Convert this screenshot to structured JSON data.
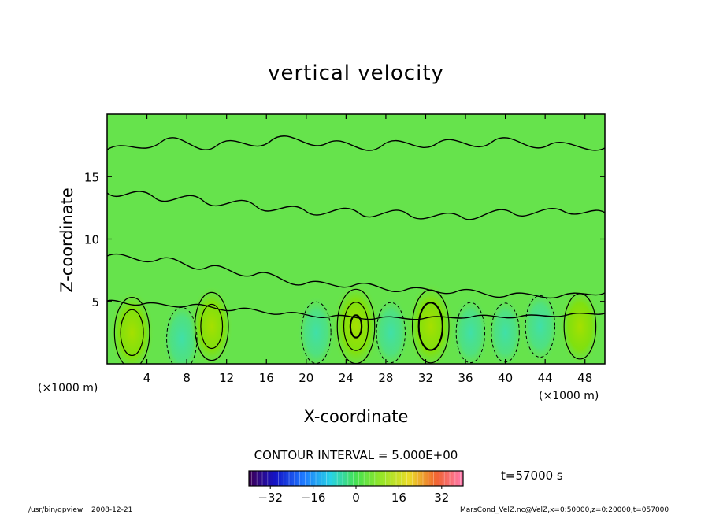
{
  "chart_data": {
    "type": "heatmap",
    "title": "vertical velocity",
    "xlabel": "X-coordinate",
    "ylabel": "Z-coordinate",
    "xunit_left": "(×1000 m)",
    "xunit_right": "(×1000 m)",
    "xlim": [
      0,
      50
    ],
    "ylim": [
      0,
      20
    ],
    "xticks": [
      4,
      8,
      12,
      16,
      20,
      24,
      28,
      32,
      36,
      40,
      44,
      48
    ],
    "yticks": [
      5,
      10,
      15
    ],
    "contour_interval_text": "CONTOUR INTERVAL = 5.000E+00",
    "time_label": "t=57000 s",
    "colorbar": {
      "min": -40,
      "max": 40,
      "ticks": [
        -32,
        -16,
        0,
        16,
        32
      ],
      "tick_labels": [
        "−32",
        "−16",
        "0",
        "16",
        "32"
      ]
    },
    "cells": [
      {
        "x": 2.5,
        "z": 2.5,
        "w": 12
      },
      {
        "x": 7.5,
        "z": 2.0,
        "w": -6
      },
      {
        "x": 10.5,
        "z": 3.0,
        "w": 10
      },
      {
        "x": 21.0,
        "z": 2.5,
        "w": -5
      },
      {
        "x": 25.0,
        "z": 3.0,
        "w": 15
      },
      {
        "x": 28.5,
        "z": 2.5,
        "w": -4
      },
      {
        "x": 32.5,
        "z": 3.0,
        "w": 14
      },
      {
        "x": 36.5,
        "z": 2.5,
        "w": -4
      },
      {
        "x": 40.0,
        "z": 2.5,
        "w": -3
      },
      {
        "x": 43.5,
        "z": 3.0,
        "w": -5
      },
      {
        "x": 47.5,
        "z": 3.0,
        "w": 8
      }
    ]
  },
  "footer": {
    "program": "/usr/bin/gpview",
    "date": "2008-12-21",
    "source": "MarsCond_VelZ.nc@VelZ,x=0:50000,z=0:20000,t=057000"
  }
}
